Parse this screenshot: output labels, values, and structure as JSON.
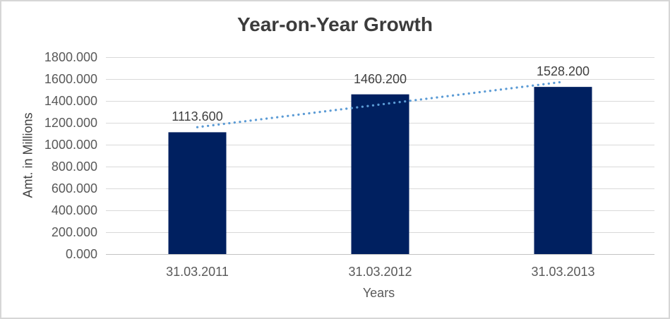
{
  "chart_data": {
    "type": "bar",
    "title": "Year-on-Year Growth",
    "xlabel": "Years",
    "ylabel": "Amt. in Millions",
    "categories": [
      "31.03.2011",
      "31.03.2012",
      "31.03.2013"
    ],
    "values": [
      1113.6,
      1460.2,
      1528.2
    ],
    "data_labels": [
      "1113.600",
      "1460.200",
      "1528.200"
    ],
    "y_tick_labels": [
      "0.000",
      "200.000",
      "400.000",
      "600.000",
      "800.000",
      "1000.000",
      "1200.000",
      "1400.000",
      "1600.000",
      "1800.000"
    ],
    "ylim": [
      0,
      1800
    ],
    "y_tick_step": 200,
    "grid": true,
    "legend": "none",
    "trendline": {
      "type": "linear",
      "style": "dotted",
      "endpoint_values": [
        1160.0,
        1574.6
      ]
    },
    "colors": {
      "bar": "#002060",
      "trendline": "#5b9bd5",
      "gridline": "#d9d9d9",
      "axis_line": "#c3c3c3",
      "title_text": "#3b3b3b",
      "axis_text": "#595959",
      "label_text": "#404040",
      "frame_border": "#d6d6d6",
      "background": "#ffffff"
    }
  }
}
